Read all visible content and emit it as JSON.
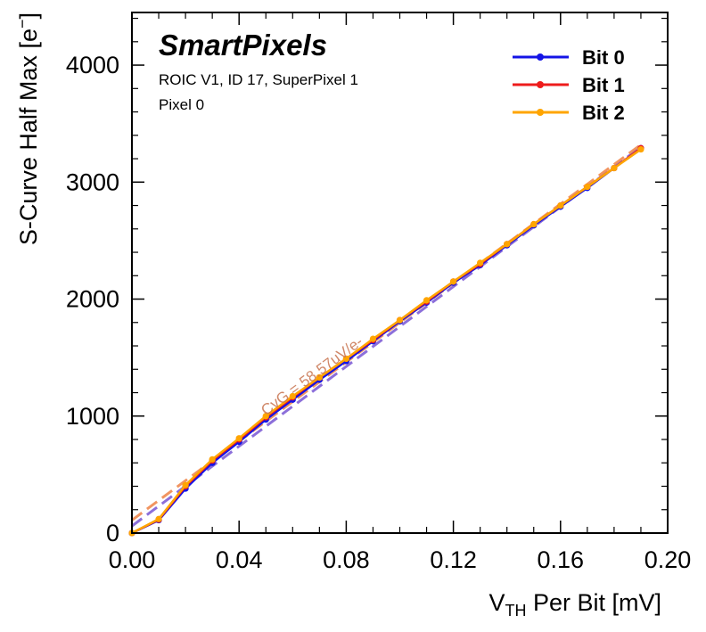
{
  "chart_data": {
    "type": "line",
    "experiment_label": "SmartPixels",
    "info_lines": [
      "ROIC V1, ID 17, SuperPixel 1",
      "Pixel 0"
    ],
    "xlabel_main": "V",
    "xlabel_sub": "TH",
    "xlabel_rest": " Per Bit [mV]",
    "ylabel_main": "S-Curve Half Max [e",
    "ylabel_sup": "−",
    "ylabel_end": "]",
    "xlim": [
      0,
      0.2
    ],
    "ylim": [
      0,
      4450
    ],
    "x_ticks": [
      "0.00",
      "0.04",
      "0.08",
      "0.12",
      "0.16",
      "0.20"
    ],
    "y_ticks": [
      "0",
      "1000",
      "2000",
      "3000",
      "4000"
    ],
    "fit_annotation": "CvG = 58.57uV/e-",
    "legend_position": "top-right",
    "series": [
      {
        "name": "Bit 0",
        "color": "#1414e6",
        "x": [
          0,
          0.01,
          0.02,
          0.03,
          0.04,
          0.05,
          0.06,
          0.07,
          0.08,
          0.09,
          0.1,
          0.11,
          0.12,
          0.13,
          0.14,
          0.15,
          0.16,
          0.17,
          0.18,
          0.19
        ],
        "y": [
          0,
          110,
          380,
          600,
          780,
          970,
          1140,
          1310,
          1470,
          1640,
          1810,
          1970,
          2140,
          2290,
          2460,
          2630,
          2790,
          2950,
          3120,
          3290
        ]
      },
      {
        "name": "Bit 1",
        "color": "#ee1c1c",
        "x": [
          0,
          0.01,
          0.02,
          0.03,
          0.04,
          0.05,
          0.06,
          0.07,
          0.08,
          0.09,
          0.1,
          0.11,
          0.12,
          0.13,
          0.14,
          0.15,
          0.16,
          0.17,
          0.18,
          0.19
        ],
        "y": [
          0,
          115,
          400,
          620,
          800,
          990,
          1160,
          1330,
          1490,
          1650,
          1820,
          1980,
          2150,
          2300,
          2470,
          2640,
          2800,
          2960,
          3120,
          3290
        ]
      },
      {
        "name": "Bit 2",
        "color": "#ffa500",
        "x": [
          0,
          0.01,
          0.02,
          0.03,
          0.04,
          0.05,
          0.06,
          0.07,
          0.08,
          0.09,
          0.1,
          0.11,
          0.12,
          0.13,
          0.14,
          0.15,
          0.16,
          0.17,
          0.18,
          0.19
        ],
        "y": [
          0,
          120,
          410,
          630,
          810,
          1000,
          1170,
          1330,
          1490,
          1660,
          1820,
          1990,
          2150,
          2310,
          2470,
          2640,
          2800,
          2960,
          3120,
          3280
        ]
      }
    ],
    "fit_lines": [
      {
        "color": "#7f5fd6",
        "x": [
          0,
          0.19
        ],
        "y": [
          60,
          3300
        ]
      },
      {
        "color": "#f08a50",
        "x": [
          0,
          0.19
        ],
        "y": [
          110,
          3320
        ]
      }
    ]
  }
}
